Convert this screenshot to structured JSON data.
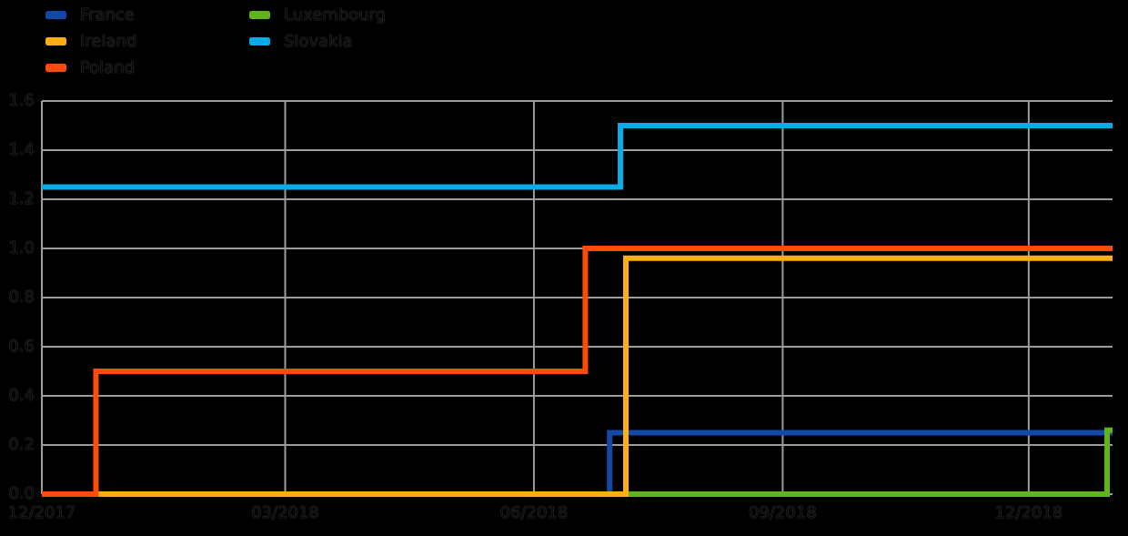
{
  "colors": {
    "background": "#000000",
    "grid": "#9C9C9C",
    "tick_text": "#070707"
  },
  "legend": {
    "position": "top-left",
    "columns": 2,
    "items": [
      {
        "label": "France"
      },
      {
        "label": "Ireland"
      },
      {
        "label": "Poland"
      },
      {
        "label": "Luxembourg"
      },
      {
        "label": "Slovakia"
      }
    ]
  },
  "chart_data": {
    "type": "line",
    "subtype": "step",
    "title": "",
    "xlabel": "",
    "ylabel": "",
    "grid": true,
    "legend_position": "top-left",
    "x_axis": {
      "start": "2017-12-01",
      "end": "2019-01-01",
      "ticks": [
        {
          "date": "2017-12-01",
          "label": "12/2017"
        },
        {
          "date": "2018-03-01",
          "label": "03/2018"
        },
        {
          "date": "2018-06-01",
          "label": "06/2018"
        },
        {
          "date": "2018-09-01",
          "label": "09/2018"
        },
        {
          "date": "2018-12-01",
          "label": "12/2018"
        }
      ]
    },
    "y_axis": {
      "min": 0.0,
      "max": 1.6,
      "tick_step": 0.2,
      "ticks": [
        {
          "value": 0.0,
          "label": "0.0"
        },
        {
          "value": 0.2,
          "label": "0.2"
        },
        {
          "value": 0.4,
          "label": "0.4"
        },
        {
          "value": 0.6,
          "label": "0.6"
        },
        {
          "value": 0.8,
          "label": "0.8"
        },
        {
          "value": 1.0,
          "label": "1.0"
        },
        {
          "value": 1.2,
          "label": "1.2"
        },
        {
          "value": 1.4,
          "label": "1.4"
        },
        {
          "value": 1.6,
          "label": "1.6"
        }
      ]
    },
    "series": [
      {
        "name": "France",
        "color": "#1348A6",
        "points": [
          {
            "date": "2017-12-01",
            "value": 0.0
          },
          {
            "date": "2018-06-29",
            "value": 0.25
          }
        ]
      },
      {
        "name": "Ireland",
        "color": "#FCAE12",
        "points": [
          {
            "date": "2017-12-01",
            "value": 0.0
          },
          {
            "date": "2018-07-05",
            "value": 0.96
          }
        ]
      },
      {
        "name": "Poland",
        "color": "#FB4D09",
        "points": [
          {
            "date": "2017-12-01",
            "value": 0.0
          },
          {
            "date": "2017-12-21",
            "value": 0.5
          },
          {
            "date": "2018-06-20",
            "value": 1.0
          }
        ]
      },
      {
        "name": "Luxembourg",
        "color": "#62B41E",
        "points": [
          {
            "date": "2017-12-01",
            "value": 0.0
          },
          {
            "date": "2018-12-30",
            "value": 0.26
          }
        ]
      },
      {
        "name": "Slovakia",
        "color": "#0AACE8",
        "points": [
          {
            "date": "2017-12-01",
            "value": 1.25
          },
          {
            "date": "2018-07-03",
            "value": 1.5
          }
        ]
      }
    ],
    "draw_order": [
      "France",
      "Luxembourg",
      "Ireland",
      "Poland",
      "Slovakia"
    ],
    "line_width": 6
  }
}
